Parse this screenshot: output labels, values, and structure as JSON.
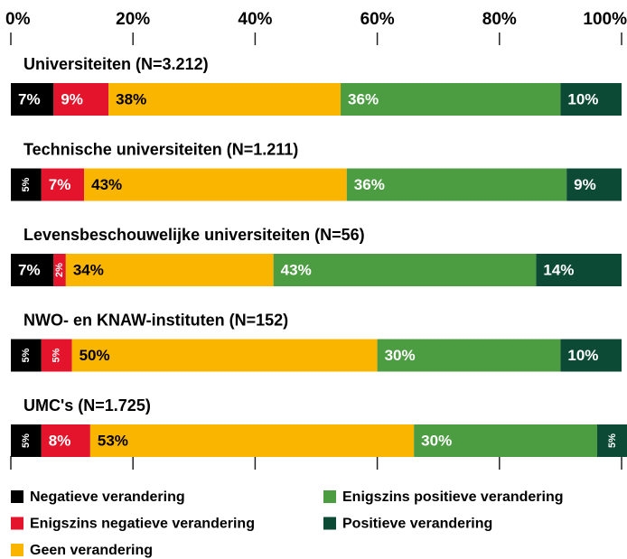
{
  "chart_data": {
    "type": "stacked-bar-horizontal",
    "categories": [
      "Universiteiten (N=3.212)",
      "Technische universiteiten (N=1.211)",
      "Levensbeschouwelijke universiteiten (N=56)",
      "NWO- en KNAW-instituten (N=152)",
      "UMC's (N=1.725)"
    ],
    "series": [
      {
        "name": "Negatieve verandering",
        "color": "#000000",
        "values": [
          7,
          5,
          7,
          5,
          5
        ],
        "value_labels": [
          "7%",
          "5%",
          "7%",
          "5%",
          "5%"
        ]
      },
      {
        "name": "Enigszins negatieve verandering",
        "color": "#e3142b",
        "values": [
          9,
          7,
          2,
          5,
          8
        ],
        "value_labels": [
          "9%",
          "7%",
          "2%",
          "5%",
          "8%"
        ]
      },
      {
        "name": "Geen verandering",
        "color": "#f9b500",
        "values": [
          38,
          43,
          34,
          50,
          53
        ],
        "value_labels": [
          "38%",
          "43%",
          "34%",
          "50%",
          "53%"
        ]
      },
      {
        "name": "Enigszins positieve verandering",
        "color": "#4c9c42",
        "values": [
          36,
          36,
          43,
          30,
          30
        ],
        "value_labels": [
          "36%",
          "36%",
          "43%",
          "30%",
          "30%"
        ]
      },
      {
        "name": "Positieve verandering",
        "color": "#0d4a35",
        "values": [
          10,
          9,
          14,
          10,
          5
        ],
        "value_labels": [
          "10%",
          "9%",
          "14%",
          "10%",
          "5%"
        ]
      }
    ],
    "xlim": [
      0,
      100
    ],
    "xticks": [
      {
        "value": 0,
        "label": "0%"
      },
      {
        "value": 20,
        "label": "20%"
      },
      {
        "value": 40,
        "label": "40%"
      },
      {
        "value": 60,
        "label": "60%"
      },
      {
        "value": 80,
        "label": "80%"
      },
      {
        "value": 100,
        "label": "100%"
      }
    ]
  }
}
